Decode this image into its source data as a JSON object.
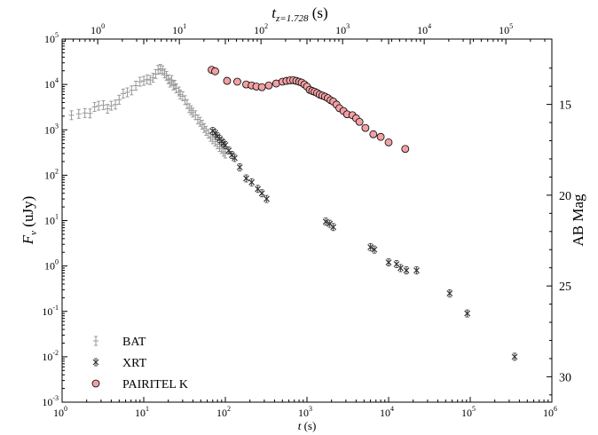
{
  "chart_data": {
    "type": "scatter",
    "xlabel": "t (s)",
    "xlabel_top": "t_{z=1.728} (s)",
    "ylabel": "F_ν (uJy)",
    "ylabel_right": "AB Mag",
    "xscale": "log",
    "yscale": "log",
    "xlim": [
      1,
      1000000
    ],
    "ylim": [
      0.001,
      100000
    ],
    "top_xlim": [
      0.366,
      366300
    ],
    "right_mag_ticks": [
      15,
      20,
      25,
      30
    ],
    "grid": false,
    "legend_position": "lower-left",
    "x_ticks": [
      {
        "v": 1,
        "m": "10",
        "e": "0"
      },
      {
        "v": 10,
        "m": "10",
        "e": "1"
      },
      {
        "v": 100,
        "m": "10",
        "e": "2"
      },
      {
        "v": 1000,
        "m": "10",
        "e": "3"
      },
      {
        "v": 10000,
        "m": "10",
        "e": "4"
      },
      {
        "v": 100000,
        "m": "10",
        "e": "5"
      },
      {
        "v": 1000000,
        "m": "10",
        "e": "6"
      }
    ],
    "top_x_ticks": [
      {
        "v": 1,
        "m": "10",
        "e": "0"
      },
      {
        "v": 10,
        "m": "10",
        "e": "1"
      },
      {
        "v": 100,
        "m": "10",
        "e": "2"
      },
      {
        "v": 1000,
        "m": "10",
        "e": "3"
      },
      {
        "v": 10000,
        "m": "10",
        "e": "4"
      },
      {
        "v": 100000,
        "m": "10",
        "e": "5"
      }
    ],
    "y_ticks": [
      {
        "v": 100000,
        "m": "10",
        "e": "5"
      },
      {
        "v": 10000,
        "m": "10",
        "e": "4"
      },
      {
        "v": 1000,
        "m": "10",
        "e": "3"
      },
      {
        "v": 100,
        "m": "10",
        "e": "2"
      },
      {
        "v": 10,
        "m": "10",
        "e": "1"
      },
      {
        "v": 1,
        "m": "10",
        "e": "0"
      },
      {
        "v": 0.1,
        "m": "10",
        "e": "-1"
      },
      {
        "v": 0.01,
        "m": "10",
        "e": "-2"
      },
      {
        "v": 0.001,
        "m": "10",
        "e": "-3"
      }
    ],
    "y_tick_labels": [
      "10^5",
      "10^4",
      "10^3",
      "10^2",
      "10^1",
      "1.0",
      "10^-1",
      "10^-2",
      "10^-3"
    ],
    "series": [
      {
        "name": "BAT",
        "marker": "plus-errorbar",
        "color": "#999999",
        "points": [
          [
            1.3,
            2100
          ],
          [
            1.6,
            2250
          ],
          [
            1.9,
            2350
          ],
          [
            2.2,
            2300
          ],
          [
            2.5,
            3200
          ],
          [
            2.8,
            3400
          ],
          [
            3.2,
            3500
          ],
          [
            3.6,
            2900
          ],
          [
            4.0,
            3400
          ],
          [
            4.5,
            3600
          ],
          [
            5.0,
            4600
          ],
          [
            5.6,
            6300
          ],
          [
            6.3,
            6700
          ],
          [
            7.1,
            7400
          ],
          [
            8.0,
            9400
          ],
          [
            9.0,
            11500
          ],
          [
            10.0,
            12000
          ],
          [
            11,
            13000
          ],
          [
            12,
            12500
          ],
          [
            13,
            14000
          ],
          [
            14,
            17000
          ],
          [
            15,
            21000
          ],
          [
            16,
            22000
          ],
          [
            17,
            20500
          ],
          [
            18,
            17500
          ],
          [
            19,
            15500
          ],
          [
            20,
            13000
          ],
          [
            21,
            11000
          ],
          [
            22,
            12500
          ],
          [
            23,
            9500
          ],
          [
            24,
            9800
          ],
          [
            25,
            8200
          ],
          [
            27,
            7000
          ],
          [
            28,
            6000
          ],
          [
            30,
            5500
          ],
          [
            32,
            4500
          ],
          [
            34,
            3700
          ],
          [
            36,
            3000
          ],
          [
            38,
            2700
          ],
          [
            40,
            2400
          ],
          [
            43,
            2100
          ],
          [
            46,
            1700
          ],
          [
            49,
            1500
          ],
          [
            52,
            1300
          ],
          [
            55,
            1100
          ],
          [
            58,
            950
          ],
          [
            62,
            820
          ],
          [
            66,
            700
          ],
          [
            70,
            620
          ],
          [
            75,
            550
          ],
          [
            80,
            480
          ],
          [
            85,
            420
          ],
          [
            90,
            380
          ],
          [
            95,
            330
          ],
          [
            100,
            300
          ]
        ]
      },
      {
        "name": "XRT",
        "marker": "x-errorbar",
        "color": "#333333",
        "points": [
          [
            70,
            950
          ],
          [
            75,
            850
          ],
          [
            80,
            720
          ],
          [
            85,
            630
          ],
          [
            90,
            560
          ],
          [
            95,
            500
          ],
          [
            100,
            460
          ],
          [
            110,
            350
          ],
          [
            120,
            280
          ],
          [
            130,
            240
          ],
          [
            150,
            150
          ],
          [
            180,
            85
          ],
          [
            210,
            70
          ],
          [
            250,
            50
          ],
          [
            280,
            40
          ],
          [
            320,
            30
          ],
          [
            1700,
            9.5
          ],
          [
            1900,
            8.5
          ],
          [
            2100,
            7.2
          ],
          [
            6000,
            2.6
          ],
          [
            6700,
            2.3
          ],
          [
            10000,
            1.2
          ],
          [
            12500,
            1.1
          ],
          [
            14000,
            0.9
          ],
          [
            16500,
            0.8
          ],
          [
            22000,
            0.8
          ],
          [
            56000,
            0.25
          ],
          [
            92000,
            0.09
          ],
          [
            350000,
            0.01
          ]
        ]
      },
      {
        "name": "PAIRITEL K",
        "marker": "circle",
        "color": "#f2a0a3",
        "points": [
          [
            68,
            21000
          ],
          [
            75,
            19500
          ],
          [
            105,
            12000
          ],
          [
            140,
            11500
          ],
          [
            180,
            10000
          ],
          [
            210,
            9500
          ],
          [
            240,
            9000
          ],
          [
            280,
            8700
          ],
          [
            340,
            9500
          ],
          [
            420,
            10500
          ],
          [
            500,
            11500
          ],
          [
            560,
            12000
          ],
          [
            620,
            12300
          ],
          [
            680,
            12400
          ],
          [
            740,
            12000
          ],
          [
            800,
            11500
          ],
          [
            860,
            11000
          ],
          [
            930,
            10000
          ],
          [
            1000,
            9000
          ],
          [
            1080,
            7600
          ],
          [
            1160,
            7200
          ],
          [
            1240,
            6900
          ],
          [
            1330,
            6500
          ],
          [
            1430,
            6000
          ],
          [
            1540,
            5700
          ],
          [
            1660,
            5400
          ],
          [
            1800,
            5000
          ],
          [
            1950,
            4500
          ],
          [
            2100,
            4200
          ],
          [
            2300,
            3600
          ],
          [
            2500,
            3000
          ],
          [
            2800,
            2600
          ],
          [
            3100,
            2200
          ],
          [
            3600,
            2100
          ],
          [
            4000,
            1800
          ],
          [
            4400,
            1500
          ],
          [
            5200,
            1100
          ],
          [
            6500,
            800
          ],
          [
            8000,
            700
          ],
          [
            10000,
            530
          ],
          [
            16000,
            380
          ]
        ]
      }
    ]
  }
}
